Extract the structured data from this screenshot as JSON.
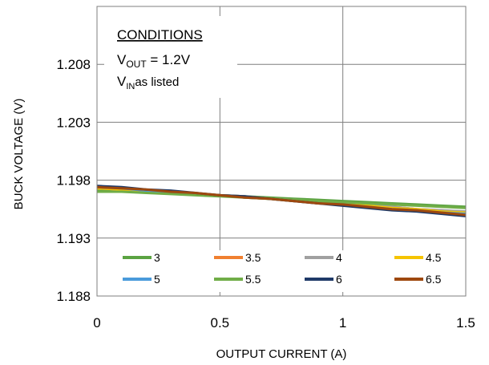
{
  "chart_data": {
    "type": "line",
    "xlabel": "OUTPUT CURRENT (A)",
    "ylabel": "BUCK VOLTAGE (V)",
    "xlim": [
      0,
      1.5
    ],
    "ylim": [
      1.188,
      1.213
    ],
    "x_ticks": [
      "0",
      "0.5",
      "1",
      "1.5"
    ],
    "y_ticks": [
      "1.188",
      "1.193",
      "1.198",
      "1.203",
      "1.208"
    ],
    "grid": true,
    "legend_position": "bottom",
    "annotation": {
      "heading": "CONDITIONS",
      "line1_main": "V",
      "line1_sub": "OUT",
      "line1_rest": " = 1.2V",
      "line2_main": "V",
      "line2_sub": "IN",
      "line2_rest": "as listed"
    },
    "x": [
      0,
      0.1,
      0.2,
      0.3,
      0.4,
      0.5,
      0.6,
      0.7,
      0.8,
      0.9,
      1.0,
      1.1,
      1.2,
      1.3,
      1.4,
      1.5
    ],
    "series": [
      {
        "name": "3",
        "color": "#5BA342",
        "values": [
          1.1972,
          1.1971,
          1.197,
          1.1969,
          1.1968,
          1.1967,
          1.1966,
          1.1965,
          1.1964,
          1.1963,
          1.1962,
          1.1961,
          1.196,
          1.1959,
          1.1958,
          1.1957
        ]
      },
      {
        "name": "3.5",
        "color": "#F08030",
        "values": [
          1.1973,
          1.1972,
          1.1971,
          1.197,
          1.1968,
          1.1967,
          1.1966,
          1.1964,
          1.1963,
          1.1961,
          1.196,
          1.1958,
          1.1957,
          1.1955,
          1.1954,
          1.1952
        ]
      },
      {
        "name": "4",
        "color": "#A0A0A0",
        "values": [
          1.1973,
          1.1972,
          1.1971,
          1.197,
          1.1968,
          1.1967,
          1.1966,
          1.1964,
          1.1963,
          1.1961,
          1.196,
          1.1959,
          1.1957,
          1.1955,
          1.1954,
          1.1953
        ]
      },
      {
        "name": "4.5",
        "color": "#F5C400",
        "values": [
          1.1973,
          1.1972,
          1.1971,
          1.197,
          1.1968,
          1.1967,
          1.1965,
          1.1964,
          1.1962,
          1.1961,
          1.1959,
          1.1958,
          1.1956,
          1.1955,
          1.1953,
          1.1952
        ]
      },
      {
        "name": "5",
        "color": "#4A9BDB",
        "values": [
          1.1974,
          1.1973,
          1.1971,
          1.197,
          1.1968,
          1.1967,
          1.1965,
          1.1964,
          1.1962,
          1.196,
          1.1959,
          1.1957,
          1.1955,
          1.1954,
          1.1952,
          1.1951
        ]
      },
      {
        "name": "5.5",
        "color": "#70AD47",
        "values": [
          1.197,
          1.197,
          1.1969,
          1.1968,
          1.1967,
          1.1966,
          1.1965,
          1.1964,
          1.1963,
          1.1962,
          1.1961,
          1.196,
          1.1959,
          1.1958,
          1.1957,
          1.1956
        ]
      },
      {
        "name": "6",
        "color": "#1F3A68",
        "values": [
          1.1975,
          1.1974,
          1.1972,
          1.1971,
          1.1969,
          1.1967,
          1.1966,
          1.1964,
          1.1962,
          1.196,
          1.1958,
          1.1956,
          1.1954,
          1.1953,
          1.1951,
          1.1949
        ]
      },
      {
        "name": "6.5",
        "color": "#9E480E",
        "values": [
          1.1974,
          1.1973,
          1.1972,
          1.197,
          1.1969,
          1.1967,
          1.1965,
          1.1964,
          1.1962,
          1.196,
          1.1959,
          1.1957,
          1.1955,
          1.1954,
          1.1952,
          1.195
        ]
      }
    ]
  }
}
